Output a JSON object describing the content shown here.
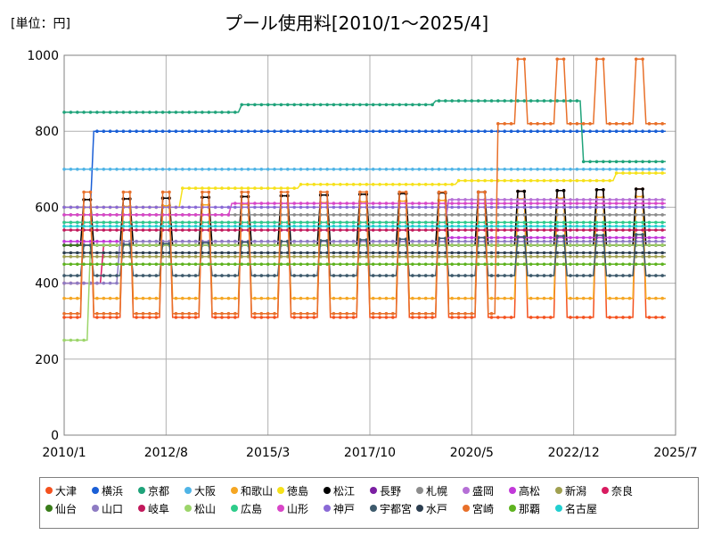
{
  "unit_label": "[単位：円]",
  "title": "プール使用料[2010/1～2025/4]",
  "chart_data": {
    "type": "line",
    "title": "プール使用料[2010/1～2025/4]",
    "ylabel": "[単位：円]",
    "xlim": [
      "2010/1",
      "2025/7"
    ],
    "ylim": [
      0,
      1000
    ],
    "x_ticks": [
      "2010/1",
      "2012/8",
      "2015/3",
      "2017/10",
      "2020/5",
      "2022/12",
      "2025/7"
    ],
    "y_ticks": [
      0,
      200,
      400,
      600,
      800,
      1000
    ],
    "grid": true,
    "legend_position": "bottom",
    "series": [
      {
        "name": "大津",
        "color": "#F4511E",
        "style": "seasonal",
        "base": 620,
        "low": 310
      },
      {
        "name": "横浜",
        "color": "#1A5FD6",
        "style": "steps",
        "steps": [
          [
            "2010/1",
            600
          ],
          [
            "2010/10",
            800
          ],
          [
            "2025/4",
            800
          ]
        ]
      },
      {
        "name": "京都",
        "color": "#1FA37A",
        "style": "steps",
        "steps": [
          [
            "2010/1",
            850
          ],
          [
            "2014/7",
            870
          ],
          [
            "2019/6",
            880
          ],
          [
            "2023/3",
            720
          ],
          [
            "2025/4",
            720
          ]
        ]
      },
      {
        "name": "大阪",
        "color": "#4FB4E6",
        "style": "steps",
        "steps": [
          [
            "2010/1",
            700
          ],
          [
            "2025/4",
            700
          ]
        ]
      },
      {
        "name": "和歌山",
        "color": "#F5A623",
        "style": "seasonal",
        "base": 600,
        "low": 360
      },
      {
        "name": "徳島",
        "color": "#F6E11A",
        "style": "steps",
        "steps": [
          [
            "2010/1",
            600
          ],
          [
            "2013/1",
            650
          ],
          [
            "2016/1",
            660
          ],
          [
            "2020/1",
            670
          ],
          [
            "2024/1",
            690
          ],
          [
            "2025/4",
            690
          ]
        ]
      },
      {
        "name": "松江",
        "color": "#000000",
        "style": "seasonal",
        "base": 620,
        "low": 500
      },
      {
        "name": "長野",
        "color": "#7B1FA2",
        "style": "steps",
        "steps": [
          [
            "2010/1",
            500
          ],
          [
            "2025/4",
            500
          ]
        ]
      },
      {
        "name": "札幌",
        "color": "#8C8C8C",
        "style": "steps",
        "steps": [
          [
            "2010/1",
            580
          ],
          [
            "2025/4",
            580
          ]
        ]
      },
      {
        "name": "盛岡",
        "color": "#B56FD6",
        "style": "steps",
        "steps": [
          [
            "2010/1",
            560
          ],
          [
            "2019/10",
            620
          ],
          [
            "2025/4",
            620
          ]
        ]
      },
      {
        "name": "高松",
        "color": "#C239D9",
        "style": "steps",
        "steps": [
          [
            "2010/1",
            510
          ],
          [
            "2019/10",
            520
          ],
          [
            "2025/4",
            520
          ]
        ]
      },
      {
        "name": "新潟",
        "color": "#A0A050",
        "style": "steps",
        "steps": [
          [
            "2010/1",
            470
          ],
          [
            "2025/4",
            470
          ]
        ]
      },
      {
        "name": "奈良",
        "color": "#D81B60",
        "style": "steps",
        "steps": [
          [
            "2010/1",
            400
          ],
          [
            "2011/1",
            500
          ],
          [
            "2025/4",
            500
          ]
        ]
      },
      {
        "name": "仙台",
        "color": "#3A7D1A",
        "style": "steps",
        "steps": [
          [
            "2010/1",
            500
          ],
          [
            "2025/4",
            500
          ]
        ]
      },
      {
        "name": "山口",
        "color": "#8E7CC3",
        "style": "steps",
        "steps": [
          [
            "2010/1",
            400
          ],
          [
            "2011/6",
            510
          ],
          [
            "2025/4",
            510
          ]
        ]
      },
      {
        "name": "岐阜",
        "color": "#C2185B",
        "style": "steps",
        "steps": [
          [
            "2010/1",
            540
          ],
          [
            "2025/4",
            540
          ]
        ]
      },
      {
        "name": "松山",
        "color": "#9CD56A",
        "style": "steps",
        "steps": [
          [
            "2010/1",
            250
          ],
          [
            "2010/9",
            500
          ],
          [
            "2025/4",
            500
          ]
        ]
      },
      {
        "name": "広島",
        "color": "#2ECC8A",
        "style": "steps",
        "steps": [
          [
            "2010/1",
            560
          ],
          [
            "2025/4",
            560
          ]
        ]
      },
      {
        "name": "山形",
        "color": "#D946C8",
        "style": "steps",
        "steps": [
          [
            "2010/1",
            580
          ],
          [
            "2014/4",
            610
          ],
          [
            "2025/4",
            610
          ]
        ]
      },
      {
        "name": "神戸",
        "color": "#8A6AD6",
        "style": "steps",
        "steps": [
          [
            "2010/1",
            600
          ],
          [
            "2025/4",
            600
          ]
        ]
      },
      {
        "name": "宇都宮",
        "color": "#3D5A6C",
        "style": "seasonal",
        "base": 500,
        "low": 420
      },
      {
        "name": "水戸",
        "color": "#2C3E50",
        "style": "steps",
        "steps": [
          [
            "2010/1",
            480
          ],
          [
            "2025/4",
            480
          ]
        ]
      },
      {
        "name": "宮崎",
        "color": "#E8702A",
        "style": "seasonal_custom",
        "base": 640,
        "low": 320
      },
      {
        "name": "那覇",
        "color": "#5FB320",
        "style": "steps",
        "steps": [
          [
            "2010/1",
            450
          ],
          [
            "2025/4",
            450
          ]
        ]
      },
      {
        "name": "名古屋",
        "color": "#22CFD0",
        "style": "steps",
        "steps": [
          [
            "2010/1",
            550
          ],
          [
            "2025/4",
            550
          ]
        ]
      }
    ]
  }
}
